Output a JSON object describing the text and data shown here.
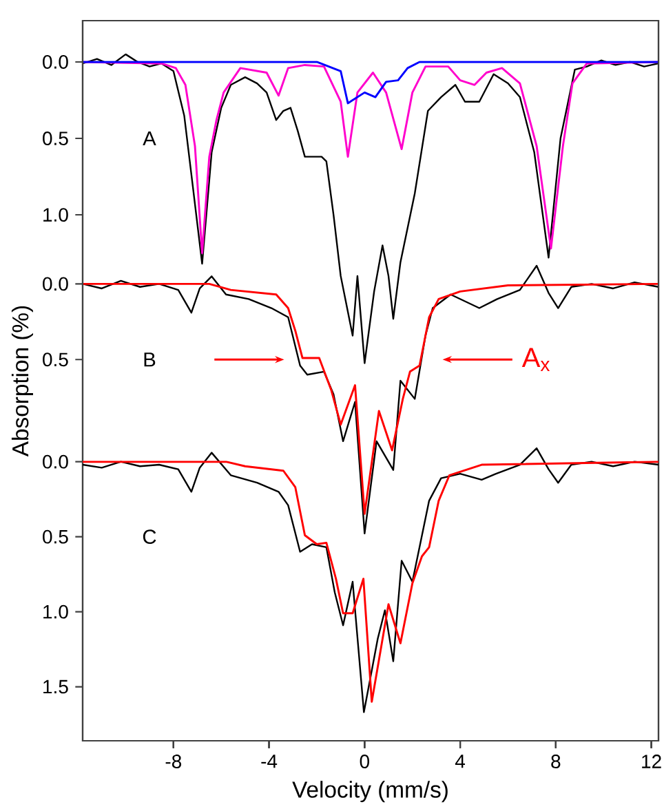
{
  "chart_data": [
    {
      "type": "line",
      "xlim": [
        -11.8,
        12.3
      ],
      "xticks": [
        -8,
        -4,
        0,
        4,
        8,
        12
      ],
      "ylim": [
        4.44,
        -0.27
      ],
      "yticks": [
        {
          "value": 0,
          "label": "0.0"
        },
        {
          "value": 0.5,
          "label": "0.5"
        },
        {
          "value": 1,
          "label": "1.0"
        }
      ],
      "tick_labels": "y",
      "grid": false,
      "legend": false,
      "marker": "none",
      "line_style": "solid",
      "annotations": [
        "A"
      ],
      "series": [
        {
          "color": "#000000",
          "x": [
            -11.8,
            -11.2,
            -10.6,
            -10.0,
            -9.5,
            -9.0,
            -8.5,
            -8.0,
            -7.55,
            -7.2,
            -6.8,
            -6.4,
            -6.0,
            -5.6,
            -5.0,
            -4.5,
            -4.1,
            -3.7,
            -3.4,
            -3.1,
            -2.8,
            -2.5,
            -1.8,
            -1.6,
            -1.3,
            -1.0,
            -0.5,
            -0.3,
            0.0,
            0.4,
            0.75,
            1.0,
            1.2,
            1.5,
            2.1,
            2.65,
            3.2,
            3.8,
            4.2,
            4.8,
            5.4,
            6.0,
            6.5,
            7.1,
            7.7,
            8.2,
            8.8,
            9.3,
            9.9,
            10.5,
            11.1,
            11.7,
            12.3
          ],
          "values": [
            0.01,
            -0.02,
            0.02,
            -0.05,
            0.0,
            0.03,
            0.01,
            0.06,
            0.35,
            0.8,
            1.32,
            0.59,
            0.3,
            0.15,
            0.1,
            0.14,
            0.2,
            0.38,
            0.32,
            0.3,
            0.45,
            0.62,
            0.62,
            0.65,
            1.0,
            1.4,
            1.79,
            1.4,
            1.97,
            1.5,
            1.2,
            1.4,
            1.68,
            1.31,
            0.86,
            0.32,
            0.23,
            0.15,
            0.26,
            0.26,
            0.08,
            0.14,
            0.23,
            0.59,
            1.28,
            0.5,
            0.05,
            0.03,
            -0.01,
            0.02,
            0.0,
            0.03,
            0.01
          ]
        },
        {
          "color": "#ff00cc",
          "x": [
            -11.8,
            -8.5,
            -7.9,
            -7.5,
            -7.1,
            -6.8,
            -6.5,
            -6.2,
            -5.9,
            -5.2,
            -4.1,
            -3.6,
            -3.2,
            -2.5,
            -1.7,
            -1.0,
            -0.7,
            -0.3,
            0.35,
            0.9,
            1.55,
            2.0,
            2.55,
            3.5,
            4.0,
            4.6,
            5.1,
            5.75,
            6.5,
            7.2,
            7.8,
            8.3,
            8.7,
            9.3,
            12.3
          ],
          "values": [
            0.0,
            0.01,
            0.04,
            0.15,
            0.55,
            1.25,
            0.62,
            0.38,
            0.2,
            0.04,
            0.07,
            0.22,
            0.04,
            0.02,
            0.03,
            0.26,
            0.62,
            0.2,
            0.07,
            0.2,
            0.57,
            0.2,
            0.03,
            0.03,
            0.12,
            0.15,
            0.07,
            0.04,
            0.14,
            0.55,
            1.22,
            0.55,
            0.14,
            0.01,
            0.0
          ]
        },
        {
          "color": "#0000ff",
          "x": [
            -11.8,
            -2.0,
            -1.0,
            -0.7,
            0.0,
            0.45,
            0.9,
            1.4,
            1.8,
            2.3,
            12.3
          ],
          "values": [
            0.0,
            0.0,
            0.06,
            0.27,
            0.2,
            0.23,
            0.13,
            0.12,
            0.04,
            0.0,
            0.0
          ]
        }
      ]
    },
    {
      "type": "line",
      "xlim": [
        -11.8,
        12.3
      ],
      "xticks": [
        -8,
        -4,
        0,
        4,
        8,
        12
      ],
      "ylim": [
        3.02,
        -1.74
      ],
      "yticks": [
        {
          "value": 0,
          "label": "0.0"
        },
        {
          "value": 0.5,
          "label": "0.5"
        }
      ],
      "tick_labels": "y",
      "grid": false,
      "legend": false,
      "marker": "none",
      "line_style": "solid",
      "ylabel": "Absorption (%)",
      "annotations": [
        "B",
        "A$_{x}$"
      ],
      "series": [
        {
          "color": "#000000",
          "x": [
            -11.8,
            -11.0,
            -10.2,
            -9.4,
            -8.6,
            -7.8,
            -7.25,
            -6.9,
            -6.4,
            -5.8,
            -4.85,
            -3.9,
            -3.2,
            -2.7,
            -2.4,
            -1.7,
            -1.3,
            -0.9,
            -0.4,
            0.0,
            0.5,
            1.2,
            1.5,
            2.1,
            2.55,
            2.85,
            3.6,
            4.8,
            5.55,
            6.5,
            7.2,
            7.7,
            8.1,
            8.65,
            9.5,
            10.4,
            11.3,
            12.3
          ],
          "values": [
            0.0,
            0.03,
            -0.02,
            0.02,
            0.0,
            0.04,
            0.19,
            0.03,
            -0.05,
            0.07,
            0.1,
            0.16,
            0.22,
            0.54,
            0.6,
            0.58,
            0.73,
            1.04,
            0.78,
            1.65,
            1.04,
            1.23,
            0.64,
            0.76,
            0.34,
            0.16,
            0.07,
            0.16,
            0.1,
            0.04,
            -0.12,
            0.06,
            0.16,
            0.02,
            0.0,
            0.03,
            -0.01,
            0.02
          ]
        },
        {
          "color": "#ff0000",
          "x": [
            -11.8,
            -6.5,
            -5.6,
            -3.7,
            -3.2,
            -2.9,
            -2.6,
            -1.9,
            -1.4,
            -1.0,
            -0.4,
            0.0,
            0.6,
            1.15,
            1.6,
            1.9,
            2.3,
            2.7,
            3.1,
            4.0,
            6.0,
            12.3
          ],
          "values": [
            0.0,
            0.0,
            0.04,
            0.07,
            0.16,
            0.31,
            0.49,
            0.49,
            0.7,
            0.93,
            0.67,
            1.52,
            0.84,
            1.1,
            0.76,
            0.58,
            0.54,
            0.22,
            0.1,
            0.05,
            0.01,
            0.0
          ]
        }
      ]
    },
    {
      "type": "line",
      "xlim": [
        -11.8,
        12.3
      ],
      "xticks": [
        -8,
        -4,
        0,
        4,
        8,
        12
      ],
      "ylim": [
        1.86,
        -2.94
      ],
      "yticks": [
        {
          "value": 0,
          "label": "0.0"
        },
        {
          "value": 0.5,
          "label": "0.5"
        },
        {
          "value": 1,
          "label": "1.0"
        },
        {
          "value": 1.5,
          "label": "1.5"
        }
      ],
      "grid": false,
      "legend": false,
      "marker": "none",
      "line_style": "solid",
      "xlabel": "Velocity (mm/s)",
      "annotations": [
        "C"
      ],
      "series": [
        {
          "color": "#000000",
          "x": [
            -11.8,
            -11.0,
            -10.2,
            -9.4,
            -8.6,
            -7.8,
            -7.25,
            -6.9,
            -6.4,
            -5.6,
            -4.5,
            -3.6,
            -3.2,
            -2.7,
            -2.2,
            -1.6,
            -1.25,
            -0.9,
            -0.5,
            -0.03,
            0.55,
            0.85,
            1.2,
            1.55,
            2.0,
            2.7,
            3.2,
            4.0,
            4.9,
            5.5,
            6.5,
            7.2,
            7.7,
            8.1,
            8.65,
            9.5,
            10.4,
            11.3,
            12.3
          ],
          "values": [
            0.02,
            0.04,
            0.0,
            0.03,
            0.02,
            0.05,
            0.2,
            0.04,
            -0.06,
            0.09,
            0.14,
            0.2,
            0.29,
            0.6,
            0.55,
            0.57,
            0.87,
            1.09,
            0.8,
            1.67,
            1.18,
            0.99,
            1.33,
            0.66,
            0.8,
            0.26,
            0.11,
            0.08,
            0.12,
            0.08,
            0.02,
            -0.09,
            0.05,
            0.14,
            0.02,
            0.0,
            0.03,
            0.0,
            0.02
          ]
        },
        {
          "color": "#ff0000",
          "x": [
            -11.8,
            -5.8,
            -5.0,
            -3.4,
            -2.9,
            -2.5,
            -2.0,
            -1.6,
            -1.2,
            -0.9,
            -0.5,
            -0.05,
            0.3,
            1.0,
            1.5,
            2.0,
            2.4,
            2.7,
            3.1,
            3.55,
            4.9,
            12.3
          ],
          "values": [
            0.0,
            0.0,
            0.03,
            0.06,
            0.17,
            0.49,
            0.55,
            0.54,
            0.78,
            1.01,
            1.01,
            0.78,
            1.6,
            0.95,
            1.21,
            0.81,
            0.63,
            0.57,
            0.26,
            0.09,
            0.02,
            0.0
          ]
        }
      ]
    }
  ]
}
